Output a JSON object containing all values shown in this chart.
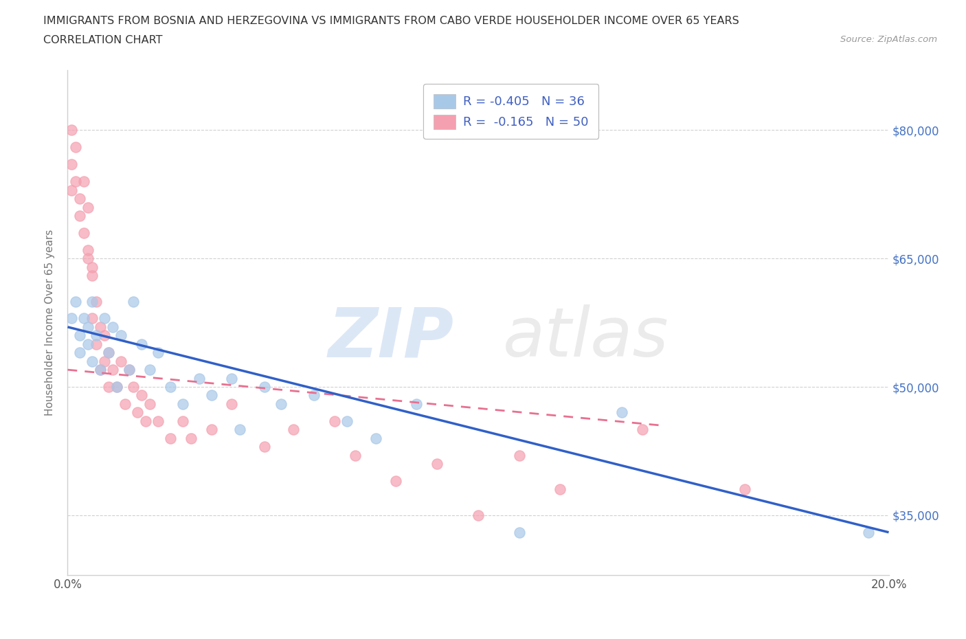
{
  "title_line1": "IMMIGRANTS FROM BOSNIA AND HERZEGOVINA VS IMMIGRANTS FROM CABO VERDE HOUSEHOLDER INCOME OVER 65 YEARS",
  "title_line2": "CORRELATION CHART",
  "source_text": "Source: ZipAtlas.com",
  "ylabel": "Householder Income Over 65 years",
  "xlim": [
    0.0,
    0.2
  ],
  "ylim": [
    28000,
    87000
  ],
  "xticks": [
    0.0,
    0.05,
    0.1,
    0.15,
    0.2
  ],
  "xticklabels": [
    "0.0%",
    "",
    "",
    "",
    "20.0%"
  ],
  "ytick_labels_right": [
    "$35,000",
    "$50,000",
    "$65,000",
    "$80,000"
  ],
  "ytick_values_right": [
    35000,
    50000,
    65000,
    80000
  ],
  "bosnia_color": "#a8c8e8",
  "cabo_color": "#f4a0b0",
  "bosnia_label": "Immigrants from Bosnia and Herzegovina",
  "cabo_label": "Immigrants from Cabo Verde",
  "bosnia_R": "-0.405",
  "bosnia_N": "36",
  "cabo_R": "-0.165",
  "cabo_N": "50",
  "watermark_zip": "ZIP",
  "watermark_atlas": "atlas",
  "background_color": "#ffffff",
  "grid_color": "#d0d0d0",
  "legend_text_color": "#4060c0",
  "right_axis_color": "#4472c4",
  "bosnia_line_color": "#3060c8",
  "cabo_line_color": "#e87090",
  "bosnia_scatter_x": [
    0.001,
    0.002,
    0.003,
    0.003,
    0.004,
    0.005,
    0.005,
    0.006,
    0.006,
    0.007,
    0.008,
    0.009,
    0.01,
    0.011,
    0.012,
    0.013,
    0.015,
    0.016,
    0.018,
    0.02,
    0.022,
    0.025,
    0.028,
    0.032,
    0.035,
    0.04,
    0.042,
    0.048,
    0.052,
    0.06,
    0.068,
    0.075,
    0.085,
    0.11,
    0.135,
    0.195
  ],
  "bosnia_scatter_y": [
    58000,
    60000,
    56000,
    54000,
    58000,
    55000,
    57000,
    53000,
    60000,
    56000,
    52000,
    58000,
    54000,
    57000,
    50000,
    56000,
    52000,
    60000,
    55000,
    52000,
    54000,
    50000,
    48000,
    51000,
    49000,
    51000,
    45000,
    50000,
    48000,
    49000,
    46000,
    44000,
    48000,
    33000,
    47000,
    33000
  ],
  "cabo_scatter_x": [
    0.001,
    0.001,
    0.001,
    0.002,
    0.002,
    0.003,
    0.003,
    0.004,
    0.004,
    0.005,
    0.005,
    0.005,
    0.006,
    0.006,
    0.006,
    0.007,
    0.007,
    0.008,
    0.008,
    0.009,
    0.009,
    0.01,
    0.01,
    0.011,
    0.012,
    0.013,
    0.014,
    0.015,
    0.016,
    0.017,
    0.018,
    0.019,
    0.02,
    0.022,
    0.025,
    0.028,
    0.03,
    0.035,
    0.04,
    0.048,
    0.055,
    0.065,
    0.07,
    0.08,
    0.09,
    0.1,
    0.11,
    0.12,
    0.14,
    0.165
  ],
  "cabo_scatter_y": [
    73000,
    76000,
    80000,
    74000,
    78000,
    70000,
    72000,
    68000,
    74000,
    65000,
    71000,
    66000,
    63000,
    58000,
    64000,
    55000,
    60000,
    52000,
    57000,
    53000,
    56000,
    50000,
    54000,
    52000,
    50000,
    53000,
    48000,
    52000,
    50000,
    47000,
    49000,
    46000,
    48000,
    46000,
    44000,
    46000,
    44000,
    45000,
    48000,
    43000,
    45000,
    46000,
    42000,
    39000,
    41000,
    35000,
    42000,
    38000,
    45000,
    38000
  ]
}
